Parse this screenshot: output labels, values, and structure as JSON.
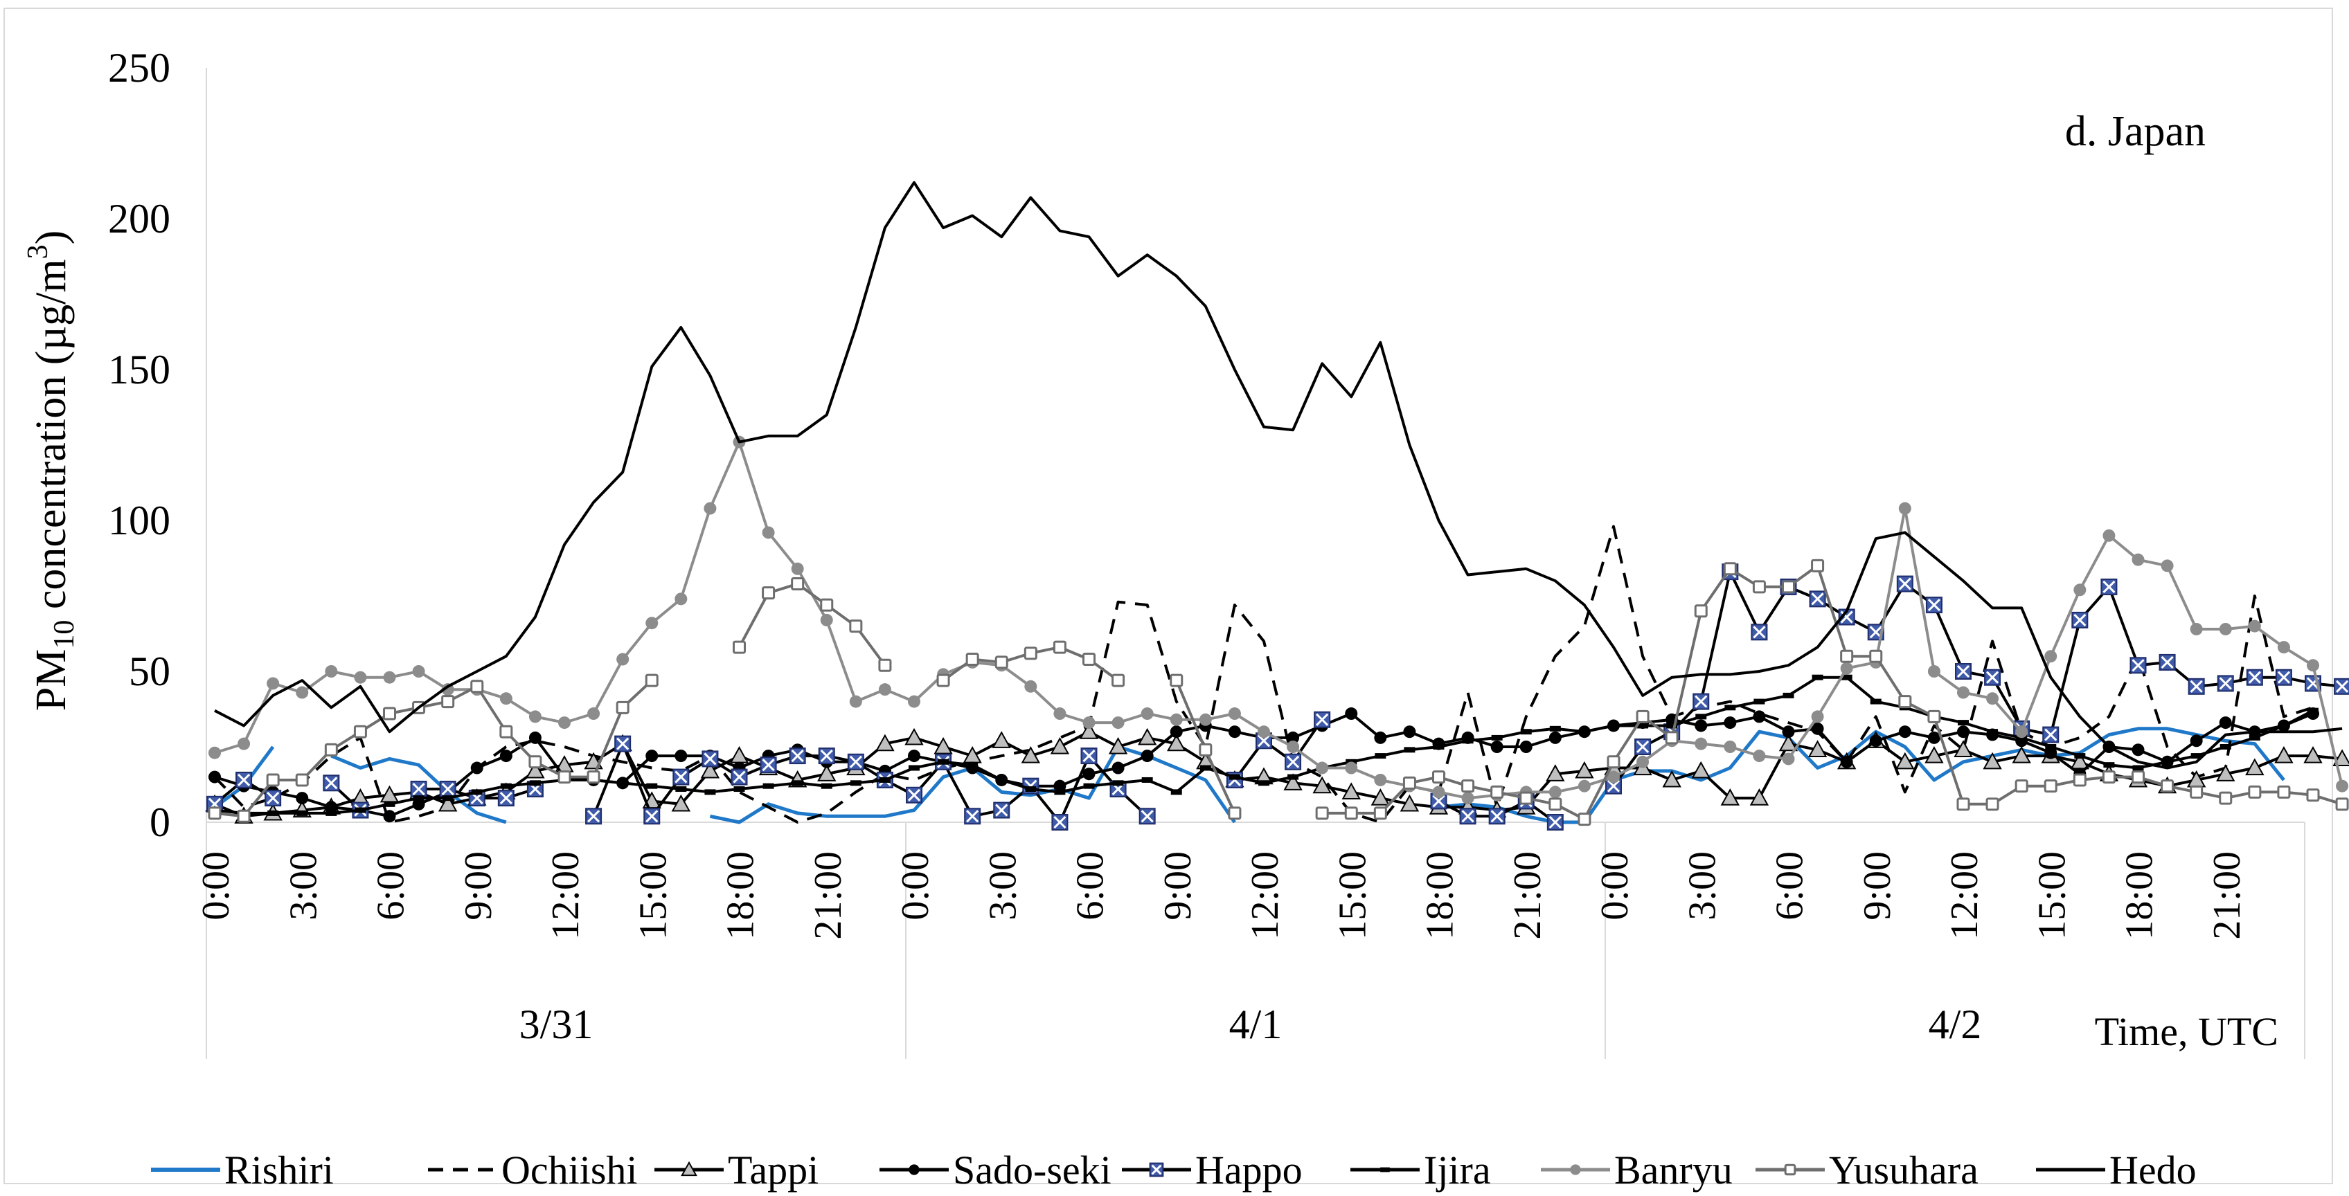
{
  "chart_data": {
    "type": "line",
    "title": "d. Japan",
    "ylabel": {
      "prefix": "PM",
      "sub": "10",
      "middle": "  concentration (µg/m",
      "sup": "3",
      "suffix": ")"
    },
    "xlabel": "Time, UTC",
    "ylim": [
      0,
      250
    ],
    "yticks": [
      0,
      50,
      100,
      150,
      200,
      250
    ],
    "grid": false,
    "legend_position": "bottom",
    "hours_per_day": 24,
    "tick_step_hours": 3,
    "x_tick_labels": [
      "0:00",
      "3:00",
      "6:00",
      "9:00",
      "12:00",
      "15:00",
      "18:00",
      "21:00"
    ],
    "days": [
      "3/31",
      "4/1",
      "4/2"
    ],
    "series": [
      {
        "name": "Rishiri",
        "color": "#1f78c8",
        "dash": "",
        "marker": "none",
        "values": [
          5,
          12,
          25,
          null,
          22,
          18,
          21,
          19,
          10,
          3,
          0,
          null,
          null,
          null,
          null,
          null,
          null,
          2,
          0,
          6,
          3,
          2,
          2,
          2,
          4,
          15,
          18,
          10,
          9,
          11,
          8,
          25,
          22,
          18,
          14,
          0,
          null,
          null,
          null,
          null,
          null,
          null,
          5,
          6,
          5,
          2,
          0,
          0,
          14,
          17,
          17,
          14,
          18,
          30,
          28,
          18,
          22,
          30,
          25,
          14,
          20,
          22,
          24,
          22,
          23,
          29,
          31,
          31,
          29,
          27,
          26,
          14
        ]
      },
      {
        "name": "Ochiishi",
        "color": "#000000",
        "dash": "22,14",
        "marker": "none",
        "values": [
          15,
          5,
          8,
          13,
          22,
          28,
          0,
          2,
          5,
          18,
          25,
          27,
          25,
          22,
          20,
          18,
          17,
          22,
          10,
          5,
          0,
          3,
          10,
          16,
          14,
          18,
          20,
          22,
          24,
          28,
          32,
          73,
          72,
          40,
          25,
          72,
          60,
          20,
          15,
          3,
          0,
          12,
          10,
          43,
          5,
          35,
          55,
          65,
          98,
          55,
          35,
          38,
          40,
          36,
          33,
          30,
          20,
          35,
          10,
          32,
          24,
          60,
          30,
          25,
          28,
          35,
          55,
          25,
          15,
          18,
          75,
          35,
          38
        ]
      },
      {
        "name": "Tappi",
        "color": "#000000",
        "dash": "",
        "marker": "triangle",
        "values": [
          6,
          2,
          3,
          4,
          5,
          8,
          9,
          10,
          6,
          8,
          10,
          17,
          19,
          20,
          26,
          7,
          6,
          17,
          22,
          18,
          14,
          16,
          18,
          26,
          28,
          25,
          22,
          27,
          22,
          25,
          30,
          25,
          28,
          26,
          20,
          14,
          15,
          13,
          12,
          10,
          8,
          6,
          5,
          5,
          4,
          5,
          16,
          17,
          18,
          18,
          14,
          17,
          8,
          8,
          26,
          24,
          20,
          27,
          20,
          22,
          24,
          20,
          22,
          22,
          20,
          16,
          14,
          12,
          14,
          16,
          18,
          22,
          22,
          21
        ]
      },
      {
        "name": "Sado-seki",
        "color": "#000000",
        "dash": "",
        "marker": "circle",
        "values": [
          15,
          12,
          10,
          8,
          5,
          4,
          2,
          6,
          10,
          18,
          22,
          28,
          15,
          14,
          13,
          22,
          22,
          22,
          18,
          22,
          24,
          20,
          20,
          17,
          22,
          20,
          18,
          14,
          12,
          12,
          16,
          18,
          22,
          30,
          32,
          30,
          28,
          28,
          32,
          36,
          28,
          30,
          26,
          28,
          25,
          25,
          28,
          30,
          32,
          33,
          34,
          32,
          33,
          35,
          30,
          31,
          20,
          27,
          30,
          28,
          30,
          29,
          27,
          23,
          16,
          25,
          24,
          20,
          27,
          33,
          30,
          32,
          36
        ]
      },
      {
        "name": "Happo",
        "color": "#000000",
        "dash": "",
        "marker": "x-box",
        "marker_fill": "#3f5ba9",
        "values": [
          6,
          14,
          8,
          null,
          13,
          4,
          null,
          11,
          11,
          8,
          8,
          11,
          null,
          2,
          26,
          2,
          15,
          21,
          15,
          19,
          22,
          22,
          20,
          14,
          9,
          20,
          2,
          4,
          12,
          0,
          22,
          11,
          2,
          null,
          null,
          14,
          27,
          20,
          34,
          null,
          null,
          null,
          7,
          2,
          2,
          7,
          0,
          null,
          12,
          25,
          30,
          40,
          83,
          63,
          78,
          74,
          68,
          63,
          79,
          72,
          50,
          48,
          31,
          29,
          67,
          78,
          52,
          53,
          45,
          46,
          48,
          48,
          46,
          45
        ]
      },
      {
        "name": "Ijira",
        "color": "#000000",
        "dash": "",
        "marker": "dash",
        "values": [
          4,
          3,
          3,
          3,
          3,
          4,
          6,
          8,
          8,
          10,
          12,
          13,
          14,
          14,
          13,
          12,
          11,
          10,
          11,
          12,
          13,
          12,
          13,
          14,
          18,
          20,
          19,
          14,
          11,
          10,
          12,
          13,
          14,
          10,
          18,
          15,
          13,
          15,
          18,
          20,
          22,
          24,
          25,
          27,
          28,
          30,
          31,
          30,
          32,
          32,
          32,
          35,
          38,
          40,
          42,
          48,
          48,
          40,
          38,
          35,
          33,
          30,
          28,
          25,
          22,
          19,
          18,
          20,
          22,
          25,
          28,
          32,
          37
        ]
      },
      {
        "name": "Banryu",
        "color": "#8c8c8c",
        "dash": "",
        "marker": "circle",
        "marker_fill": "#8c8c8c",
        "values": [
          23,
          26,
          46,
          43,
          50,
          48,
          48,
          50,
          44,
          44,
          41,
          35,
          33,
          36,
          54,
          66,
          74,
          104,
          126,
          96,
          84,
          67,
          40,
          44,
          40,
          49,
          53,
          52,
          45,
          36,
          33,
          33,
          36,
          34,
          34,
          36,
          30,
          25,
          18,
          18,
          14,
          12,
          10,
          8,
          9,
          10,
          10,
          12,
          15,
          20,
          27,
          26,
          25,
          22,
          21,
          35,
          51,
          53,
          104,
          50,
          43,
          41,
          30,
          55,
          77,
          95,
          87,
          85,
          64,
          64,
          65,
          58,
          52,
          12
        ]
      },
      {
        "name": "Yusuhara",
        "color": "#6e6e6e",
        "dash": "",
        "marker": "square-open",
        "values": [
          3,
          2,
          14,
          14,
          24,
          30,
          36,
          38,
          40,
          45,
          30,
          20,
          15,
          15,
          38,
          47,
          null,
          null,
          58,
          76,
          79,
          72,
          65,
          52,
          null,
          47,
          54,
          53,
          56,
          58,
          54,
          47,
          null,
          47,
          24,
          3,
          null,
          null,
          3,
          3,
          3,
          13,
          15,
          12,
          10,
          8,
          6,
          1,
          20,
          35,
          28,
          70,
          84,
          78,
          78,
          85,
          55,
          55,
          40,
          35,
          6,
          6,
          12,
          12,
          14,
          15,
          15,
          12,
          10,
          8,
          10,
          10,
          9,
          6
        ]
      },
      {
        "name": "Hedo",
        "color": "#000000",
        "dash": "",
        "marker": "none",
        "values": [
          37,
          32,
          42,
          47,
          38,
          45,
          30,
          38,
          45,
          50,
          55,
          68,
          92,
          106,
          116,
          151,
          164,
          148,
          126,
          128,
          128,
          135,
          164,
          197,
          212,
          197,
          201,
          194,
          207,
          196,
          194,
          181,
          188,
          181,
          171,
          150,
          131,
          130,
          152,
          141,
          159,
          125,
          100,
          82,
          83,
          84,
          80,
          72,
          58,
          42,
          48,
          49,
          49,
          50,
          52,
          58,
          70,
          94,
          96,
          88,
          80,
          71,
          71,
          48,
          35,
          25,
          20,
          18,
          20,
          29,
          30,
          30,
          30,
          31
        ]
      }
    ]
  }
}
